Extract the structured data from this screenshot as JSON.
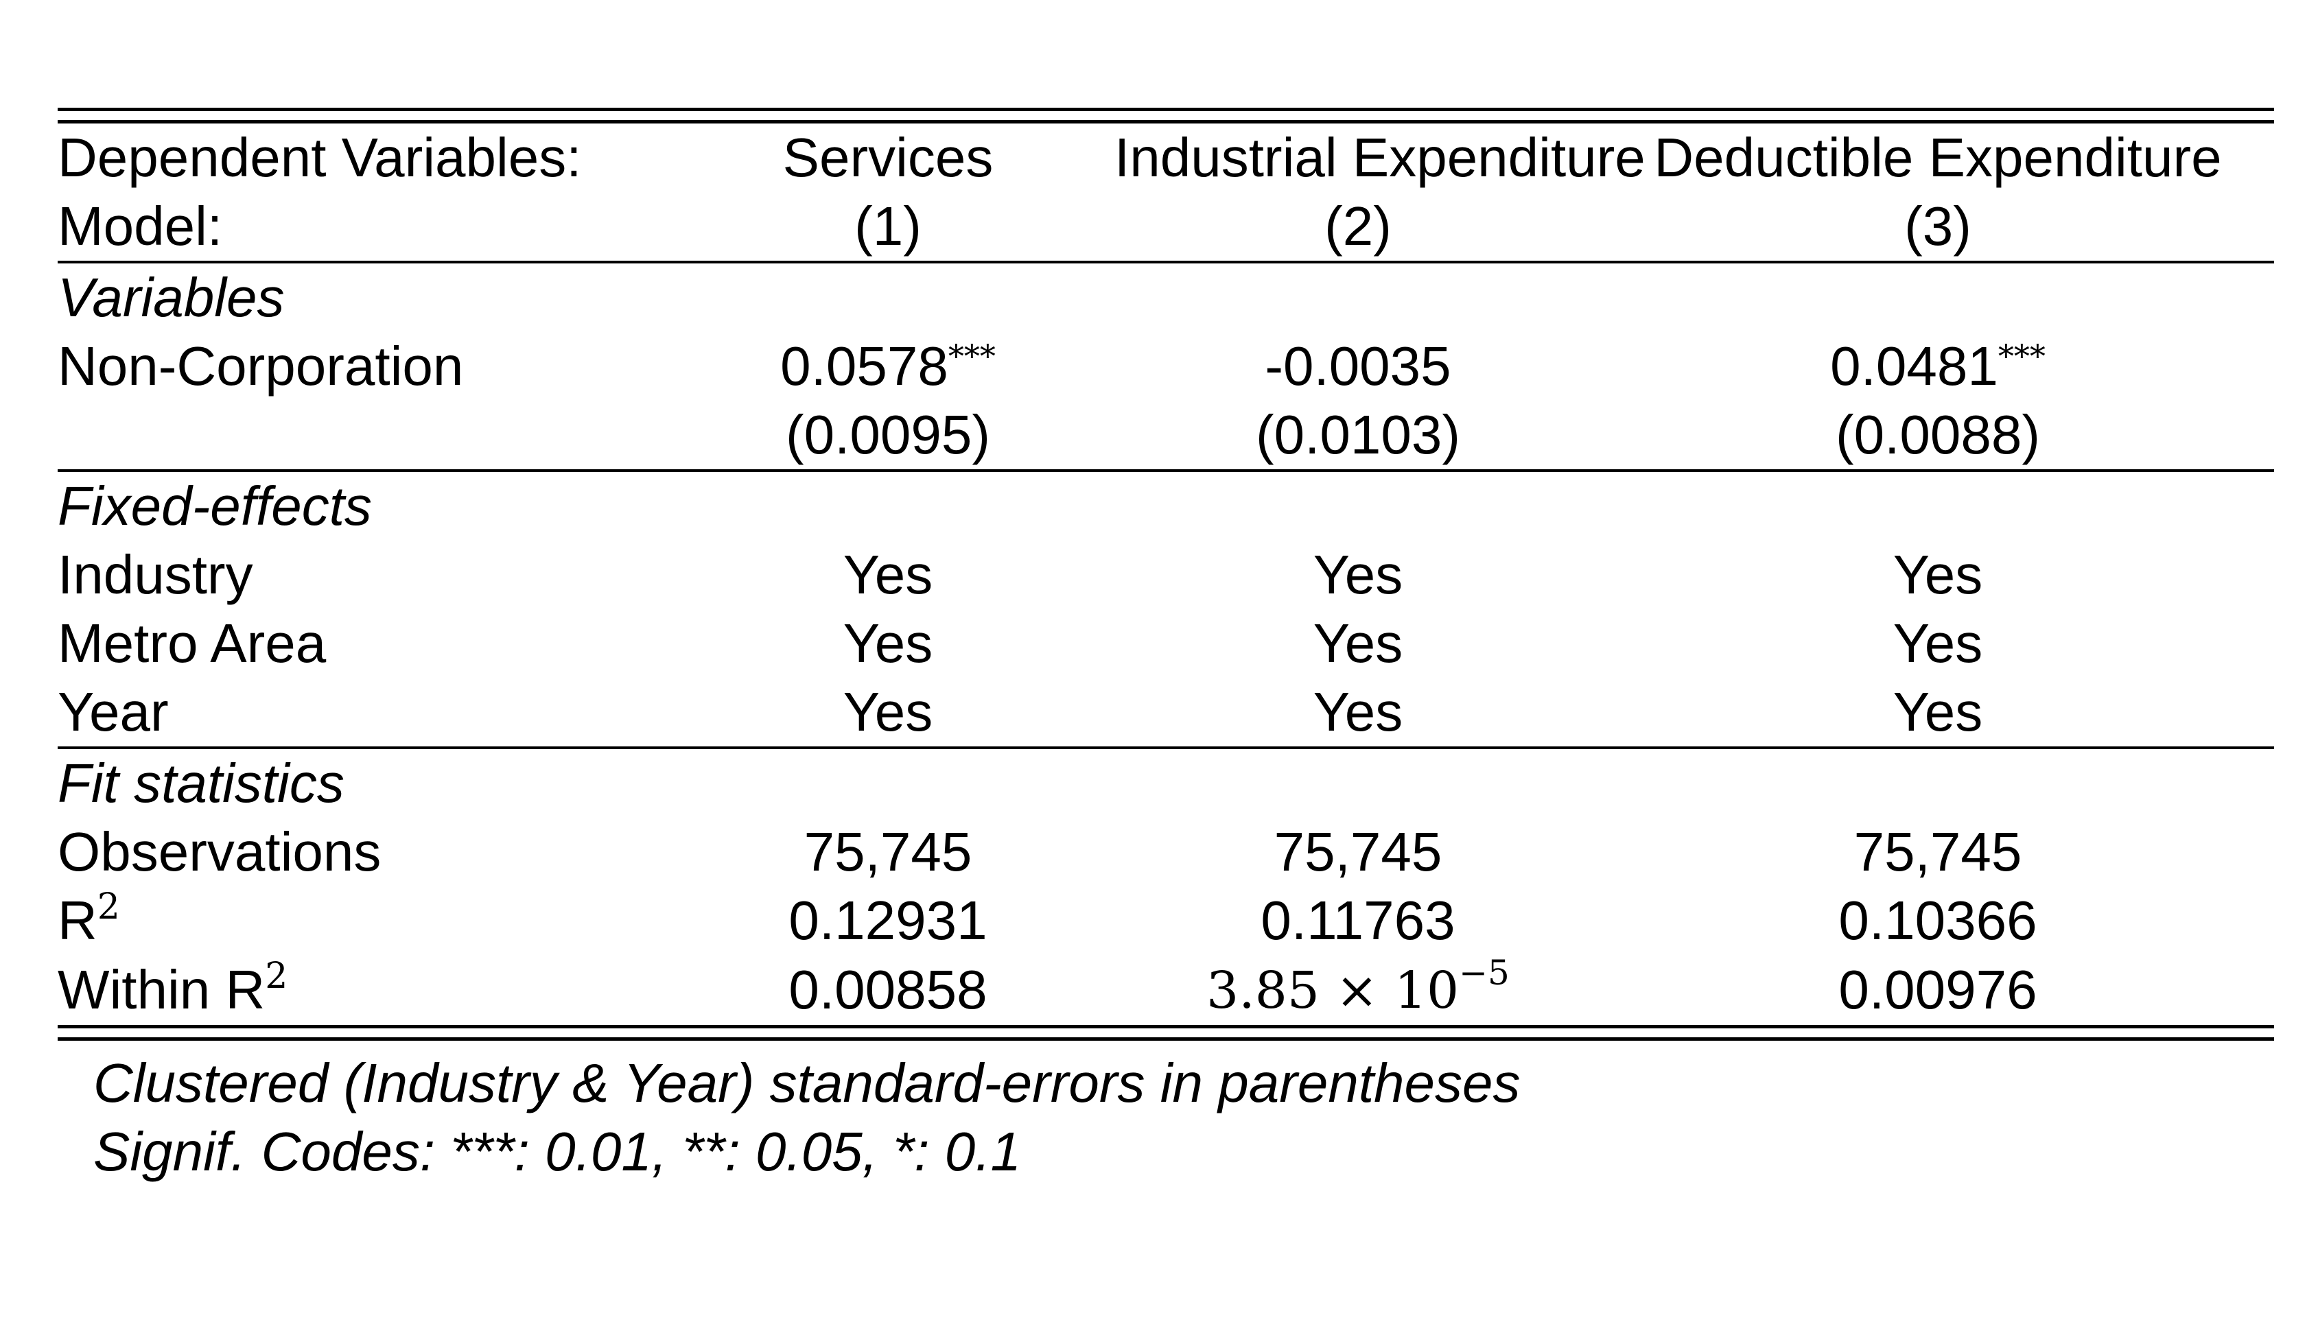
{
  "header": {
    "dep_label": "Dependent Variables:",
    "model_label": "Model:",
    "columns": [
      {
        "dep": "Services",
        "model": "(1)"
      },
      {
        "dep": "Industrial Expenditure",
        "model": "(2)"
      },
      {
        "dep": "Deductible Expenditure",
        "model": "(3)"
      }
    ]
  },
  "variables": {
    "section": "Variables",
    "rows": [
      {
        "label": "Non-Corporation",
        "coef": [
          "0.0578",
          "-0.0035",
          "0.0481"
        ],
        "stars": [
          "***",
          "",
          "***"
        ],
        "se": [
          "(0.0095)",
          "(0.0103)",
          "(0.0088)"
        ]
      }
    ]
  },
  "fixed_effects": {
    "section": "Fixed-effects",
    "rows": [
      {
        "label": "Industry",
        "values": [
          "Yes",
          "Yes",
          "Yes"
        ]
      },
      {
        "label": "Metro Area",
        "values": [
          "Yes",
          "Yes",
          "Yes"
        ]
      },
      {
        "label": "Year",
        "values": [
          "Yes",
          "Yes",
          "Yes"
        ]
      }
    ]
  },
  "fit": {
    "section": "Fit statistics",
    "observations": {
      "label": "Observations",
      "values": [
        "75,745",
        "75,745",
        "75,745"
      ]
    },
    "r2": {
      "label": "R",
      "sup": "2",
      "values": [
        "0.12931",
        "0.11763",
        "0.10366"
      ]
    },
    "within_r2": {
      "label": "Within R",
      "sup": "2",
      "values": [
        "0.00858",
        "",
        "0.00976"
      ],
      "math_value": {
        "mantissa": "3.85 × 10",
        "exponent": "−5"
      }
    }
  },
  "notes": [
    "Clustered (Industry & Year) standard-errors in parentheses",
    "Signif. Codes: ***: 0.01, **: 0.05, *: 0.1"
  ]
}
